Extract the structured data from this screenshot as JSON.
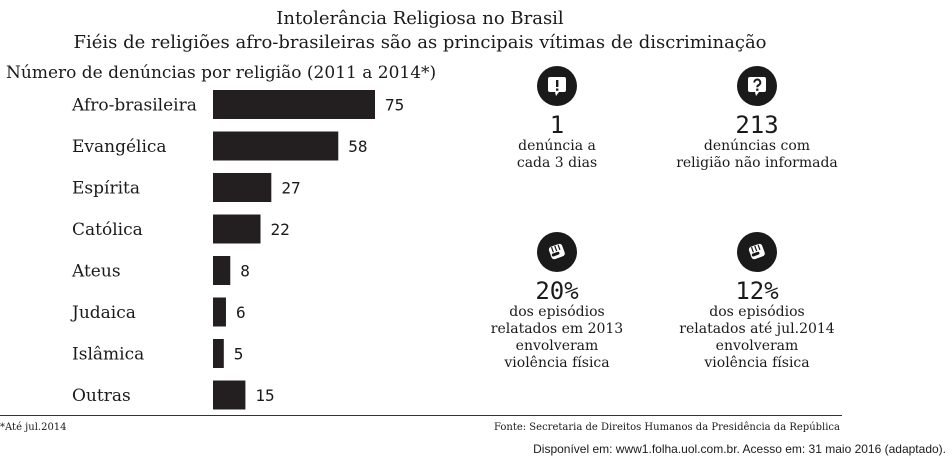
{
  "header": {
    "title": "Intolerância Religiosa no Brasil",
    "subtitle": "Fiéis de religiões afro-brasileiras são as principais vítimas de discriminação"
  },
  "chart_data": {
    "type": "bar",
    "orientation": "horizontal",
    "title": "Número de denúncias por religião (2011 a 2014*)",
    "categories": [
      "Afro-brasileira",
      "Evangélica",
      "Espírita",
      "Católica",
      "Ateus",
      "Judaica",
      "Islâmica",
      "Outras"
    ],
    "values": [
      75,
      58,
      27,
      22,
      8,
      6,
      5,
      15
    ],
    "xlim": [
      0,
      75
    ],
    "bar_color": "#231f20",
    "grid": false,
    "legend": "none"
  },
  "stats": [
    {
      "icon": "speech-bubble-exclamation-icon",
      "value": "1",
      "desc_line1": "denúncia a",
      "desc_line2": "cada 3 dias",
      "desc_line3": ""
    },
    {
      "icon": "speech-bubble-question-icon",
      "value": "213",
      "desc_line1": "denúncias com",
      "desc_line2": "religião não informada",
      "desc_line3": ""
    },
    {
      "icon": "fist-icon",
      "value": "20%",
      "desc_line1": "dos episódios",
      "desc_line2": "relatados em 2013",
      "desc_line3": "envolveram",
      "desc_line4": "violência física"
    },
    {
      "icon": "fist-icon",
      "value": "12%",
      "desc_line1": "dos episódios",
      "desc_line2": "relatados até jul.2014",
      "desc_line3": "envolveram",
      "desc_line4": "violência física"
    }
  ],
  "footer": {
    "footnote": "*Até jul.2014",
    "source": "Fonte: Secretaria de Direitos Humanos da Presidência da República",
    "availability": "Disponível em: www1.folha.uol.com.br. Acesso em: 31 maio 2016 (adaptado)."
  }
}
